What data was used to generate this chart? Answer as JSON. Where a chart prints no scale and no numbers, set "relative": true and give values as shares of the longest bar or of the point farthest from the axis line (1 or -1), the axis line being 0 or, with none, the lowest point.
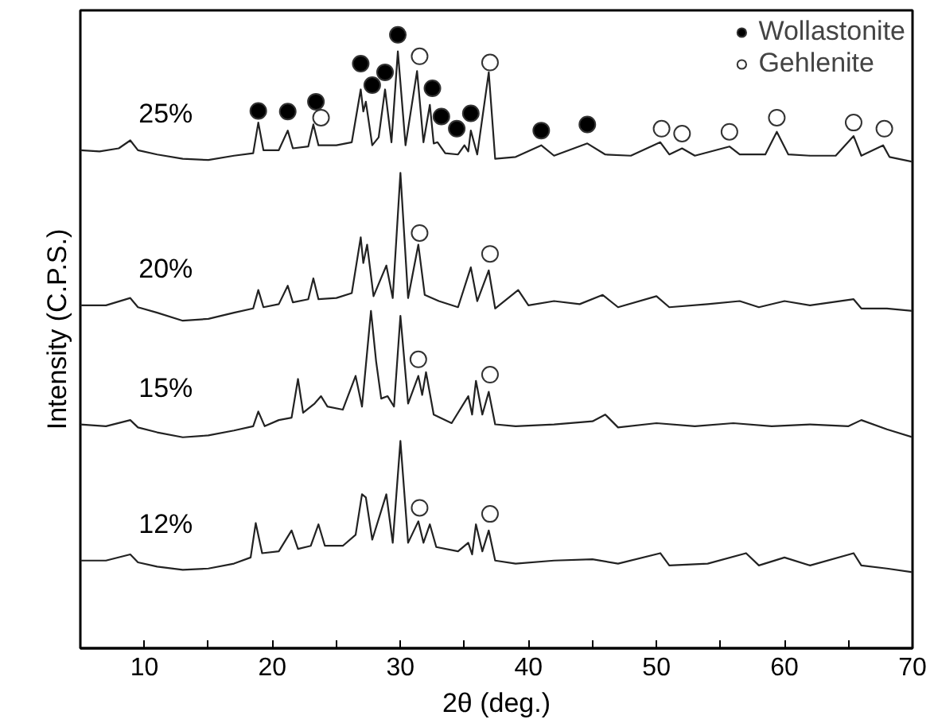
{
  "chart_data": {
    "type": "line",
    "xlabel": "2θ (deg.)",
    "ylabel": "Intensity (C.P.S.)",
    "relative": true,
    "xlim": [
      5,
      70
    ],
    "xticks": [
      {
        "value": 5,
        "label": null
      },
      10,
      {
        "value": 15,
        "label": null
      },
      20,
      {
        "value": 25,
        "label": null
      },
      30,
      {
        "value": 35,
        "label": null
      },
      40,
      {
        "value": 45,
        "label": null
      },
      50,
      {
        "value": 55,
        "label": null
      },
      60,
      {
        "value": 65,
        "label": null
      },
      70
    ],
    "tick_labels": "x",
    "grid": false,
    "legend": "top right",
    "marker": "none",
    "line_style": "solid",
    "series": [
      {
        "name": "25%",
        "color": "#222222",
        "x": [
          5,
          6.5,
          8,
          8.9,
          9.5,
          11,
          13,
          15,
          17,
          18.5,
          18.9,
          19.3,
          20.5,
          21.2,
          21.6,
          22.8,
          23.2,
          23.6,
          25,
          26.2,
          26.9,
          27.1,
          27.3,
          27.8,
          28.3,
          28.8,
          29.3,
          29.8,
          30.4,
          31.3,
          31.8,
          32.3,
          32.6,
          32.9,
          33.5,
          34.5,
          35.0,
          35.3,
          35.5,
          36,
          36.9,
          37.4,
          39,
          41,
          42,
          44.6,
          46,
          48,
          50.3,
          51,
          52,
          53,
          55.7,
          56.5,
          58.5,
          59.4,
          60.3,
          62,
          64,
          65.4,
          66,
          67.7,
          68.2,
          70
        ],
        "values": [
          0.812,
          0.81,
          0.815,
          0.828,
          0.812,
          0.805,
          0.798,
          0.796,
          0.803,
          0.807,
          0.857,
          0.812,
          0.812,
          0.844,
          0.815,
          0.818,
          0.854,
          0.82,
          0.82,
          0.825,
          0.911,
          0.875,
          0.891,
          0.82,
          0.833,
          0.911,
          0.825,
          0.973,
          0.82,
          0.941,
          0.825,
          0.886,
          0.823,
          0.825,
          0.807,
          0.805,
          0.82,
          0.81,
          0.844,
          0.805,
          0.939,
          0.798,
          0.801,
          0.82,
          0.803,
          0.823,
          0.805,
          0.803,
          0.825,
          0.805,
          0.815,
          0.803,
          0.818,
          0.805,
          0.805,
          0.842,
          0.805,
          0.803,
          0.803,
          0.835,
          0.803,
          0.82,
          0.801,
          0.793
        ]
      },
      {
        "name": "20%",
        "color": "#222222",
        "x": [
          5,
          7,
          8.9,
          9.5,
          11,
          13,
          15,
          17,
          18.5,
          18.9,
          19.3,
          20.5,
          21.2,
          21.6,
          22.8,
          23.2,
          23.6,
          25,
          26.2,
          26.9,
          27.1,
          27.4,
          27.9,
          28.9,
          29.4,
          30.0,
          30.6,
          31.4,
          31.9,
          33,
          34.5,
          35.5,
          36,
          36.9,
          37.4,
          39.2,
          40,
          42,
          44,
          45.8,
          47,
          50,
          51,
          54,
          56.5,
          58,
          60,
          62,
          65.4,
          66,
          68,
          70
        ],
        "values": [
          0.559,
          0.559,
          0.571,
          0.556,
          0.547,
          0.534,
          0.537,
          0.547,
          0.554,
          0.584,
          0.556,
          0.561,
          0.591,
          0.564,
          0.569,
          0.603,
          0.569,
          0.571,
          0.579,
          0.67,
          0.628,
          0.658,
          0.574,
          0.624,
          0.571,
          0.775,
          0.571,
          0.658,
          0.576,
          0.566,
          0.556,
          0.621,
          0.566,
          0.616,
          0.554,
          0.584,
          0.559,
          0.566,
          0.561,
          0.576,
          0.556,
          0.574,
          0.556,
          0.561,
          0.566,
          0.556,
          0.566,
          0.559,
          0.569,
          0.554,
          0.554,
          0.55
        ]
      },
      {
        "name": "15%",
        "color": "#222222",
        "x": [
          5,
          7,
          8.9,
          9.5,
          11,
          13,
          15,
          17,
          18.5,
          18.9,
          19.4,
          20.5,
          21.5,
          22.0,
          22.4,
          23.3,
          23.8,
          24.3,
          25.5,
          26.5,
          27,
          27.7,
          28.1,
          28.5,
          29.0,
          29.5,
          30.0,
          30.6,
          31.4,
          31.7,
          32.0,
          32.6,
          34,
          35.3,
          35.6,
          35.9,
          36.4,
          36.9,
          37.4,
          39,
          42,
          45,
          46,
          47,
          50,
          53,
          56,
          59,
          62,
          65,
          66,
          68,
          70
        ],
        "values": [
          0.365,
          0.362,
          0.372,
          0.36,
          0.352,
          0.344,
          0.347,
          0.355,
          0.362,
          0.386,
          0.362,
          0.372,
          0.376,
          0.439,
          0.384,
          0.399,
          0.411,
          0.394,
          0.389,
          0.444,
          0.394,
          0.55,
          0.468,
          0.407,
          0.411,
          0.394,
          0.542,
          0.399,
          0.444,
          0.413,
          0.45,
          0.381,
          0.367,
          0.411,
          0.381,
          0.436,
          0.381,
          0.418,
          0.365,
          0.362,
          0.365,
          0.37,
          0.381,
          0.36,
          0.367,
          0.362,
          0.367,
          0.362,
          0.365,
          0.362,
          0.372,
          0.357,
          0.344
        ]
      },
      {
        "name": "12%",
        "color": "#222222",
        "x": [
          5,
          7,
          8.9,
          9.5,
          11,
          13,
          15,
          17,
          18.3,
          18.7,
          19.2,
          20.5,
          21.5,
          22,
          23,
          23.6,
          24.1,
          25.5,
          26.5,
          27.0,
          27.3,
          27.8,
          28.9,
          29.4,
          30.0,
          30.6,
          31.4,
          31.8,
          32.3,
          32.8,
          34.5,
          35.3,
          35.6,
          35.9,
          36.4,
          36.9,
          37.4,
          39,
          42,
          45,
          47,
          50.3,
          51,
          54,
          57,
          58,
          60,
          62,
          65.4,
          66,
          68,
          70
        ],
        "values": [
          0.143,
          0.143,
          0.153,
          0.14,
          0.133,
          0.128,
          0.13,
          0.138,
          0.148,
          0.204,
          0.155,
          0.158,
          0.192,
          0.162,
          0.167,
          0.202,
          0.167,
          0.167,
          0.185,
          0.251,
          0.246,
          0.177,
          0.251,
          0.172,
          0.338,
          0.172,
          0.207,
          0.172,
          0.202,
          0.165,
          0.158,
          0.172,
          0.153,
          0.202,
          0.158,
          0.192,
          0.143,
          0.138,
          0.143,
          0.145,
          0.138,
          0.155,
          0.135,
          0.138,
          0.155,
          0.135,
          0.148,
          0.135,
          0.155,
          0.135,
          0.13,
          0.124
        ]
      },
      {
        "name": "Wollastonite",
        "type": "scatter",
        "marker": "circle",
        "color": "#000000",
        "x": [
          18.9,
          21.2,
          23.4,
          26.9,
          27.8,
          28.8,
          29.8,
          32.5,
          33.2,
          34.4,
          35.5,
          41.0,
          44.6
        ],
        "values": [
          0.876,
          0.875,
          0.891,
          0.953,
          0.918,
          0.939,
          1.0,
          0.913,
          0.867,
          0.847,
          0.872,
          0.844,
          0.854
        ]
      },
      {
        "name": "Gehlenite",
        "type": "scatter",
        "marker": "circle",
        "color": "#ffffff",
        "x": [
          23.8,
          31.5,
          37.0,
          31.5,
          37.0,
          31.4,
          37.0,
          31.5,
          37.0,
          50.4,
          52.0,
          55.7,
          59.4,
          65.4,
          67.8
        ],
        "values": [
          0.865,
          0.965,
          0.955,
          0.677,
          0.643,
          0.471,
          0.446,
          0.229,
          0.219,
          0.847,
          0.839,
          0.842,
          0.865,
          0.857,
          0.847
        ]
      }
    ]
  }
}
